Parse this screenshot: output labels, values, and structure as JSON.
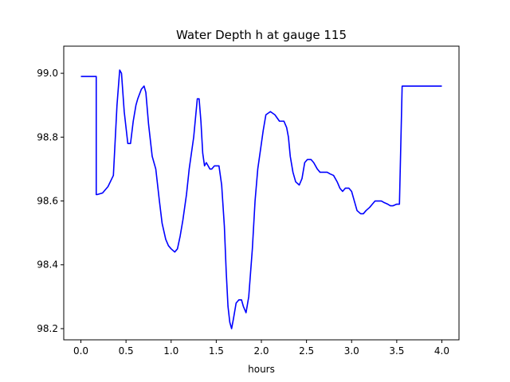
{
  "chart_data": {
    "type": "line",
    "title": "Water Depth h at gauge 115",
    "xlabel": "hours",
    "ylabel": "",
    "xlim": [
      -0.19,
      4.19
    ],
    "ylim": [
      98.165,
      99.085
    ],
    "xticks": [
      0.0,
      0.5,
      1.0,
      1.5,
      2.0,
      2.5,
      3.0,
      3.5,
      4.0
    ],
    "xtick_labels": [
      "0.0",
      "0.5",
      "1.0",
      "1.5",
      "2.0",
      "2.5",
      "3.0",
      "3.5",
      "4.0"
    ],
    "yticks": [
      98.2,
      98.4,
      98.6,
      98.8,
      99.0
    ],
    "ytick_labels": [
      "98.2",
      "98.4",
      "98.6",
      "98.8",
      "99.0"
    ],
    "grid": false,
    "line_color": "#0000ff",
    "series": [
      {
        "name": "",
        "x": [
          0.0,
          0.17,
          0.17,
          0.18,
          0.24,
          0.3,
          0.36,
          0.4,
          0.43,
          0.45,
          0.48,
          0.52,
          0.55,
          0.58,
          0.61,
          0.63,
          0.67,
          0.7,
          0.72,
          0.75,
          0.79,
          0.83,
          0.87,
          0.9,
          0.94,
          0.97,
          1.0,
          1.04,
          1.07,
          1.1,
          1.13,
          1.17,
          1.2,
          1.25,
          1.29,
          1.31,
          1.33,
          1.35,
          1.37,
          1.39,
          1.41,
          1.43,
          1.45,
          1.48,
          1.5,
          1.53,
          1.56,
          1.59,
          1.61,
          1.63,
          1.65,
          1.67,
          1.69,
          1.72,
          1.75,
          1.78,
          1.8,
          1.83,
          1.86,
          1.9,
          1.93,
          1.96,
          1.99,
          2.02,
          2.05,
          2.1,
          2.15,
          2.2,
          2.25,
          2.28,
          2.3,
          2.32,
          2.35,
          2.38,
          2.42,
          2.45,
          2.48,
          2.51,
          2.55,
          2.58,
          2.62,
          2.65,
          2.7,
          2.73,
          2.76,
          2.8,
          2.84,
          2.87,
          2.9,
          2.93,
          2.97,
          3.0,
          3.03,
          3.06,
          3.1,
          3.13,
          3.16,
          3.2,
          3.23,
          3.26,
          3.3,
          3.33,
          3.36,
          3.4,
          3.43,
          3.46,
          3.5,
          3.53,
          3.56,
          3.6,
          3.65,
          3.7,
          3.75,
          3.8,
          3.85,
          3.9,
          3.95,
          3.98,
          3.98,
          3.99,
          3.99,
          4.0
        ],
        "y": [
          98.99,
          98.99,
          98.62,
          98.62,
          98.625,
          98.645,
          98.68,
          98.9,
          99.01,
          99.0,
          98.88,
          98.78,
          98.78,
          98.85,
          98.9,
          98.92,
          98.95,
          98.96,
          98.94,
          98.84,
          98.74,
          98.7,
          98.6,
          98.53,
          98.48,
          98.46,
          98.45,
          98.44,
          98.45,
          98.49,
          98.54,
          98.62,
          98.7,
          98.8,
          98.92,
          98.92,
          98.85,
          98.75,
          98.71,
          98.72,
          98.71,
          98.7,
          98.7,
          98.71,
          98.71,
          98.71,
          98.65,
          98.52,
          98.38,
          98.27,
          98.22,
          98.2,
          98.23,
          98.28,
          98.29,
          98.29,
          98.27,
          98.25,
          98.3,
          98.45,
          98.6,
          98.7,
          98.76,
          98.82,
          98.87,
          98.88,
          98.87,
          98.85,
          98.85,
          98.83,
          98.8,
          98.74,
          98.69,
          98.66,
          98.65,
          98.67,
          98.72,
          98.73,
          98.73,
          98.72,
          98.7,
          98.69,
          98.69,
          98.69,
          98.685,
          98.68,
          98.66,
          98.64,
          98.63,
          98.64,
          98.64,
          98.63,
          98.6,
          98.57,
          98.56,
          98.56,
          98.57,
          98.58,
          98.59,
          98.6,
          98.6,
          98.6,
          98.595,
          98.59,
          98.585,
          98.585,
          98.59,
          98.59,
          98.96,
          98.96,
          98.96,
          98.96,
          98.96,
          98.96,
          98.96,
          98.96,
          98.96,
          98.96,
          98.96,
          98.96,
          98.96,
          98.96
        ],
        "color": "#0000ff"
      }
    ]
  }
}
